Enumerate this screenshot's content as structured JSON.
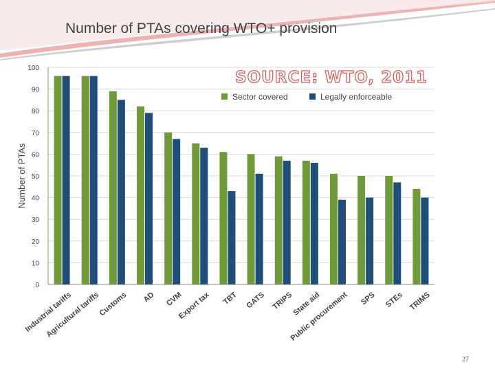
{
  "slide": {
    "title": "Number of PTAs covering WTO+ provision",
    "source_label": "SOURCE: WTO, 2011",
    "page_number": "27"
  },
  "colors": {
    "sector": "#6f9a3a",
    "legal": "#1f4e79",
    "grid": "#d9d9d9",
    "axis": "#888888",
    "text": "#404040",
    "deco_pink": "#e8a0a0",
    "deco_grey": "#c9c9c9"
  },
  "chart_data": {
    "type": "bar",
    "title": "",
    "xlabel": "",
    "ylabel": "Number of PTAs",
    "ylim": [
      0,
      100
    ],
    "yticks": [
      0,
      10,
      20,
      30,
      40,
      50,
      60,
      70,
      80,
      90,
      100
    ],
    "grid": true,
    "legend_position": "top-right",
    "categories": [
      "Industrial tariffs",
      "Agricultural tariffs",
      "Customs",
      "AD",
      "CVM",
      "Export tax",
      "TBT",
      "GATS",
      "TRIPS",
      "State aid",
      "Public procurement",
      "SPS",
      "STEs",
      "TRIMS"
    ],
    "series": [
      {
        "name": "Sector covered",
        "color": "#6f9a3a",
        "values": [
          96,
          96,
          89,
          82,
          70,
          65,
          61,
          60,
          59,
          57,
          51,
          50,
          50,
          44
        ]
      },
      {
        "name": "Legally enforceable",
        "color": "#1f4e79",
        "values": [
          96,
          96,
          85,
          79,
          67,
          63,
          43,
          51,
          57,
          56,
          39,
          40,
          47,
          40
        ]
      }
    ]
  }
}
